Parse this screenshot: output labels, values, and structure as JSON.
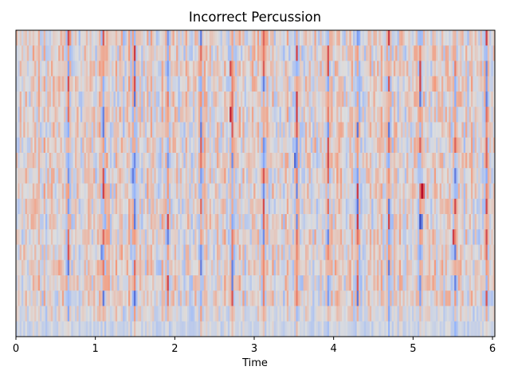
{
  "chart_data": {
    "type": "heatmap",
    "title": "Incorrect Percussion",
    "xlabel": "Time",
    "ylabel": "",
    "xlim": [
      0,
      6.03
    ],
    "xticks": [
      "0",
      "1",
      "2",
      "3",
      "4",
      "5",
      "6"
    ],
    "n_rows": 20,
    "n_cols": 260,
    "value_range": [
      -1,
      1
    ],
    "colormap": "coolwarm",
    "grid": false,
    "legend": "none",
    "strong_columns_time": [
      0.66,
      1.1,
      1.5,
      1.92,
      2.32,
      2.72,
      3.12,
      3.53,
      3.93,
      4.3,
      4.7,
      5.1,
      5.52,
      5.92
    ],
    "hot_cells": [
      {
        "time": 5.12,
        "row": 10,
        "value": 1.0
      },
      {
        "time": 2.7,
        "row": 5,
        "value": 0.9
      },
      {
        "time": 2.7,
        "row": 2,
        "value": 0.75
      },
      {
        "time": 5.51,
        "row": 13,
        "value": 0.8
      },
      {
        "time": 0.66,
        "row": 0,
        "value": 0.75
      }
    ],
    "cold_cells": [
      {
        "time": 5.1,
        "row": 12,
        "value": -1.0
      },
      {
        "time": 3.52,
        "row": 8,
        "value": -0.85
      },
      {
        "time": 1.48,
        "row": 9,
        "value": -0.75
      },
      {
        "time": 1.08,
        "row": 14,
        "value": -0.7
      }
    ]
  }
}
